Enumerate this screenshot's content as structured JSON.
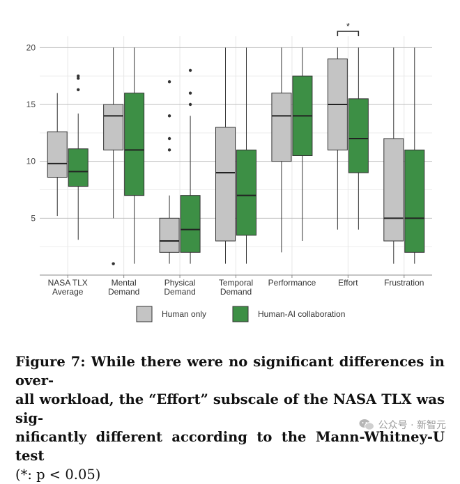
{
  "chart_data": {
    "type": "boxplot",
    "title": "",
    "xlabel": "",
    "ylabel": "",
    "ylim": [
      0,
      21
    ],
    "yticks": [
      5,
      10,
      15,
      20
    ],
    "grid": true,
    "legend_position": "bottom",
    "categories": [
      "NASA TLX Average",
      "Mental Demand",
      "Physical Demand",
      "Temporal Demand",
      "Performance",
      "Effort",
      "Frustration"
    ],
    "category_labels": [
      [
        "NASA TLX",
        "Average"
      ],
      [
        "Mental",
        "Demand"
      ],
      [
        "Physical",
        "Demand"
      ],
      [
        "Temporal",
        "Demand"
      ],
      [
        "Performance"
      ],
      [
        "Effort"
      ],
      [
        "Frustration"
      ]
    ],
    "series": [
      {
        "name": "Human only",
        "color": "#c4c4c4",
        "boxes": [
          {
            "min": 5.2,
            "q1": 8.6,
            "median": 9.8,
            "q3": 12.6,
            "max": 16.0,
            "outliers": []
          },
          {
            "min": 5.0,
            "q1": 11.0,
            "median": 14.0,
            "q3": 15.0,
            "max": 20.0,
            "outliers": [
              1.0
            ]
          },
          {
            "min": 1.0,
            "q1": 2.0,
            "median": 3.0,
            "q3": 5.0,
            "max": 7.0,
            "outliers": [
              11.0,
              12.0,
              14.0,
              17.0
            ]
          },
          {
            "min": 1.0,
            "q1": 3.0,
            "median": 9.0,
            "q3": 13.0,
            "max": 20.0,
            "outliers": []
          },
          {
            "min": 2.0,
            "q1": 10.0,
            "median": 14.0,
            "q3": 16.0,
            "max": 20.0,
            "outliers": []
          },
          {
            "min": 4.0,
            "q1": 11.0,
            "median": 15.0,
            "q3": 19.0,
            "max": 20.0,
            "outliers": []
          },
          {
            "min": 1.0,
            "q1": 3.0,
            "median": 5.0,
            "q3": 12.0,
            "max": 20.0,
            "outliers": []
          }
        ]
      },
      {
        "name": "Human-AI collaboration",
        "color": "#3d8f45",
        "boxes": [
          {
            "min": 3.1,
            "q1": 7.8,
            "median": 9.1,
            "q3": 11.1,
            "max": 14.2,
            "outliers": [
              16.3,
              17.3,
              17.5
            ]
          },
          {
            "min": 1.0,
            "q1": 7.0,
            "median": 11.0,
            "q3": 16.0,
            "max": 20.0,
            "outliers": []
          },
          {
            "min": 1.0,
            "q1": 2.0,
            "median": 4.0,
            "q3": 7.0,
            "max": 14.0,
            "outliers": [
              15.0,
              16.0,
              18.0
            ]
          },
          {
            "min": 1.0,
            "q1": 3.5,
            "median": 7.0,
            "q3": 11.0,
            "max": 20.0,
            "outliers": []
          },
          {
            "min": 3.0,
            "q1": 10.5,
            "median": 14.0,
            "q3": 17.5,
            "max": 20.0,
            "outliers": []
          },
          {
            "min": 4.0,
            "q1": 9.0,
            "median": 12.0,
            "q3": 15.5,
            "max": 20.0,
            "outliers": []
          },
          {
            "min": 1.0,
            "q1": 2.0,
            "median": 5.0,
            "q3": 11.0,
            "max": 20.0,
            "outliers": []
          }
        ]
      }
    ],
    "annotations": [
      {
        "category": "Effort",
        "text": "*",
        "type": "significance-bracket"
      }
    ]
  },
  "caption": {
    "lines": [
      "Figure 7: While there were no significant differences in over-",
      "all workload, the “Effort” subscale of the NASA TLX was sig-",
      "nificantly different according to the Mann-Whitney-U test"
    ],
    "stat_note": "(*: p < 0.05)"
  },
  "watermark": {
    "text": "公众号 · 新智元",
    "icon": "wechat-icon"
  }
}
